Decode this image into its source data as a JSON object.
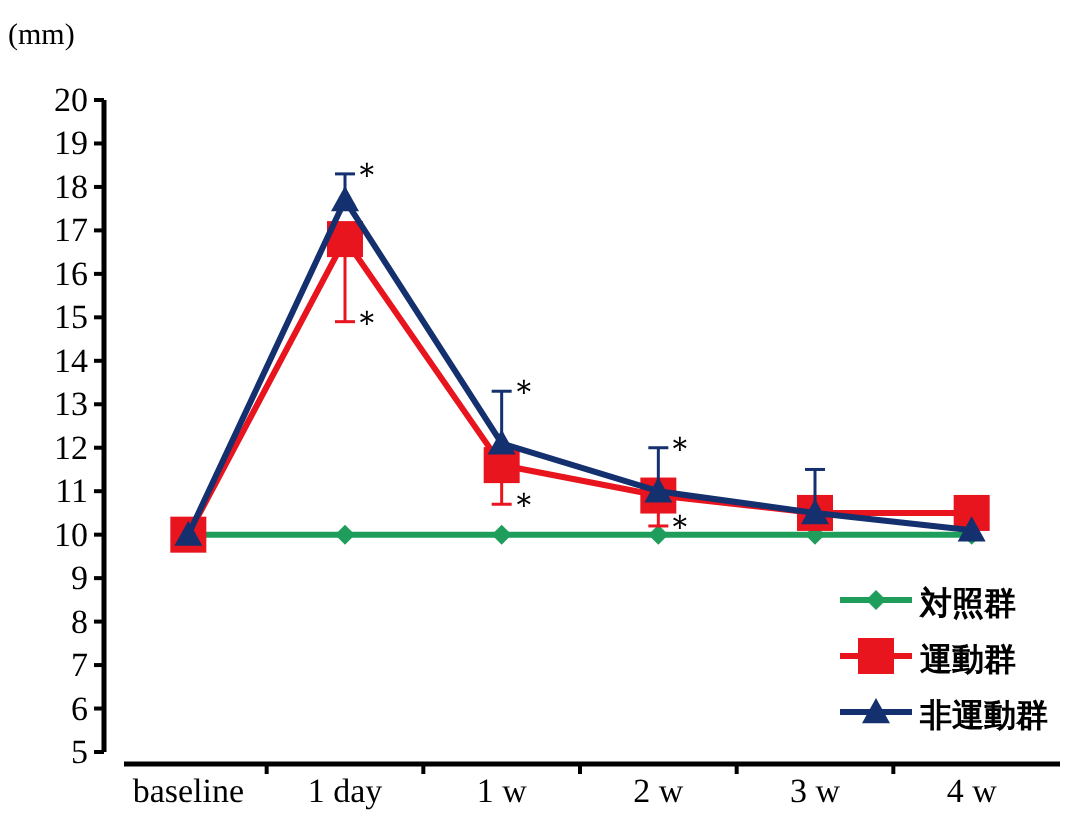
{
  "chart_data": {
    "type": "line",
    "ylabel": "(mm)",
    "categories": [
      "baseline",
      "1 day",
      "1 w",
      "2 w",
      "3 w",
      "4 w"
    ],
    "ylim": [
      5,
      20
    ],
    "yticks": [
      5,
      6,
      7,
      8,
      9,
      10,
      11,
      12,
      13,
      14,
      15,
      16,
      17,
      18,
      19,
      20
    ],
    "series": [
      {
        "name": "対照群",
        "color": "#1e9e5a",
        "marker": "diamond",
        "values": [
          10,
          10,
          10,
          10,
          10,
          10
        ]
      },
      {
        "name": "運動群",
        "color": "#e8141e",
        "marker": "square",
        "values": [
          10,
          16.8,
          11.6,
          10.9,
          10.5,
          10.5
        ],
        "errors": [
          null,
          [
            14.9,
            16.8
          ],
          [
            10.7,
            11.6
          ],
          [
            10.2,
            10.9
          ],
          null,
          null
        ]
      },
      {
        "name": "非運動群",
        "color": "#14306e",
        "marker": "triangle",
        "values": [
          10,
          17.7,
          12.1,
          11.0,
          10.5,
          10.1
        ],
        "errors": [
          null,
          [
            17.7,
            18.3
          ],
          [
            12.1,
            13.3
          ],
          [
            11.0,
            12.0
          ],
          [
            10.5,
            11.5
          ],
          null
        ]
      }
    ],
    "annotations": [
      {
        "text": "＊",
        "x": "1 day",
        "y": 18.3
      },
      {
        "text": "＊",
        "x": "1 day",
        "y": 14.9
      },
      {
        "text": "＊",
        "x": "1 w",
        "y": 13.3
      },
      {
        "text": "＊",
        "x": "1 w",
        "y": 10.7
      },
      {
        "text": "＊",
        "x": "2 w",
        "y": 12.0
      },
      {
        "text": "＊",
        "x": "2 w",
        "y": 10.2
      }
    ],
    "grid": false,
    "legend": "bottom right"
  }
}
